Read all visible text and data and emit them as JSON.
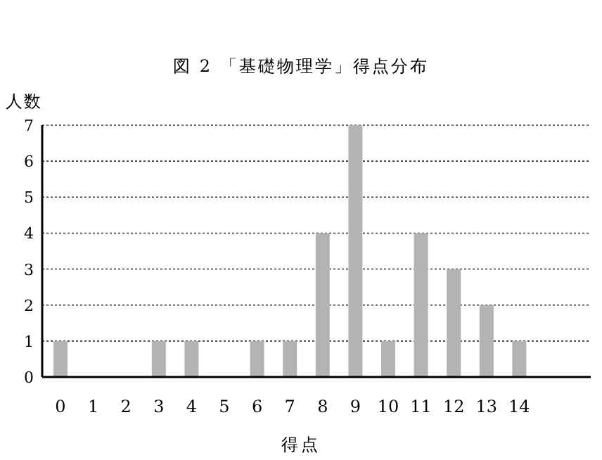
{
  "chart_data": {
    "type": "bar",
    "title": "図 2 「基礎物理学」得点分布",
    "xlabel": "得点",
    "ylabel": "人数",
    "categories": [
      "0",
      "1",
      "2",
      "3",
      "4",
      "5",
      "6",
      "7",
      "8",
      "9",
      "10",
      "11",
      "12",
      "13",
      "14"
    ],
    "values": [
      1,
      0,
      0,
      1,
      1,
      0,
      1,
      1,
      4,
      7,
      1,
      4,
      3,
      2,
      1
    ],
    "color": "#b3b3b3",
    "ylim": [
      0,
      7
    ],
    "yticks": [
      0,
      1,
      2,
      3,
      4,
      5,
      6,
      7
    ],
    "grid": "y"
  }
}
